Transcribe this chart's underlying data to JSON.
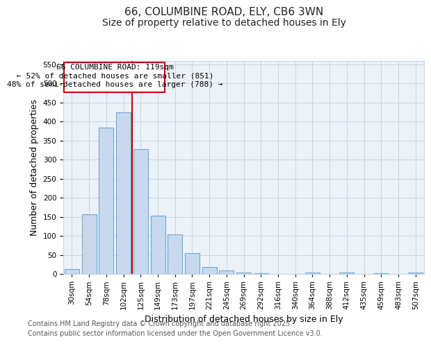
{
  "title_line1": "66, COLUMBINE ROAD, ELY, CB6 3WN",
  "title_line2": "Size of property relative to detached houses in Ely",
  "xlabel": "Distribution of detached houses by size in Ely",
  "ylabel": "Number of detached properties",
  "categories": [
    "30sqm",
    "54sqm",
    "78sqm",
    "102sqm",
    "125sqm",
    "149sqm",
    "173sqm",
    "197sqm",
    "221sqm",
    "245sqm",
    "269sqm",
    "292sqm",
    "316sqm",
    "340sqm",
    "364sqm",
    "388sqm",
    "412sqm",
    "435sqm",
    "459sqm",
    "483sqm",
    "507sqm"
  ],
  "values": [
    13,
    157,
    385,
    425,
    328,
    153,
    103,
    55,
    18,
    10,
    4,
    1,
    0,
    0,
    3,
    0,
    3,
    0,
    2,
    0,
    3
  ],
  "bar_color": "#c8d9ee",
  "bar_edge_color": "#6aaad4",
  "grid_color": "#c8d4e4",
  "background_color": "#edf2f9",
  "fig_background_color": "#ffffff",
  "vline_x_idx": 4,
  "vline_color": "#cc0000",
  "annotation_line1": "66 COLUMBINE ROAD: 119sqm",
  "annotation_line2": "← 52% of detached houses are smaller (851)",
  "annotation_line3": "48% of semi-detached houses are larger (788) →",
  "annotation_box_color": "#ffffff",
  "annotation_box_edge": "#cc0000",
  "ylim": [
    0,
    560
  ],
  "yticks": [
    0,
    50,
    100,
    150,
    200,
    250,
    300,
    350,
    400,
    450,
    500,
    550
  ],
  "footer_line1": "Contains HM Land Registry data © Crown copyright and database right 2025.",
  "footer_line2": "Contains public sector information licensed under the Open Government Licence v3.0.",
  "title_fontsize": 11,
  "subtitle_fontsize": 10,
  "tick_fontsize": 7.5,
  "label_fontsize": 9,
  "footer_fontsize": 7,
  "annotation_fontsize": 8
}
